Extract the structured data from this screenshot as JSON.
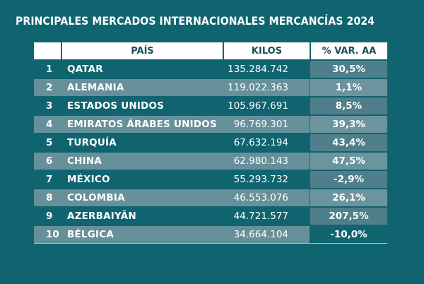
{
  "title": "PRINCIPALES MERCADOS INTERNACIONALES MERCANCÍAS 2024",
  "chart_data": {
    "type": "table",
    "title": "PRINCIPALES MERCADOS INTERNACIONALES MERCANCÍAS 2024",
    "columns": [
      "",
      "PAÍS",
      "KILOS",
      "% VAR. AA"
    ],
    "rows": [
      {
        "rank": "1",
        "pais": "QATAR",
        "kilos": "135.284.742",
        "var": "30,5%"
      },
      {
        "rank": "2",
        "pais": "ALEMANIA",
        "kilos": "119.022.363",
        "var": "1,1%"
      },
      {
        "rank": "3",
        "pais": "ESTADOS UNIDOS",
        "kilos": "105.967.691",
        "var": "8,5%"
      },
      {
        "rank": "4",
        "pais": "EMIRATOS ÁRABES UNIDOS",
        "kilos": "96.769.301",
        "var": "39,3%"
      },
      {
        "rank": "5",
        "pais": "TURQUÍA",
        "kilos": "67.632.194",
        "var": "43,4%"
      },
      {
        "rank": "6",
        "pais": "CHINA",
        "kilos": "62.980.143",
        "var": "47,5%"
      },
      {
        "rank": "7",
        "pais": "MÉXICO",
        "kilos": "55.293.732",
        "var": "-2,9%"
      },
      {
        "rank": "8",
        "pais": "COLOMBIA",
        "kilos": "46.553.076",
        "var": "26,1%"
      },
      {
        "rank": "9",
        "pais": "AZERBAIYÄN",
        "kilos": "44.721.577",
        "var": "207,5%"
      },
      {
        "rank": "10",
        "pais": "BÉLGICA",
        "kilos": "34.664.104",
        "var": "-10,0%"
      }
    ]
  }
}
